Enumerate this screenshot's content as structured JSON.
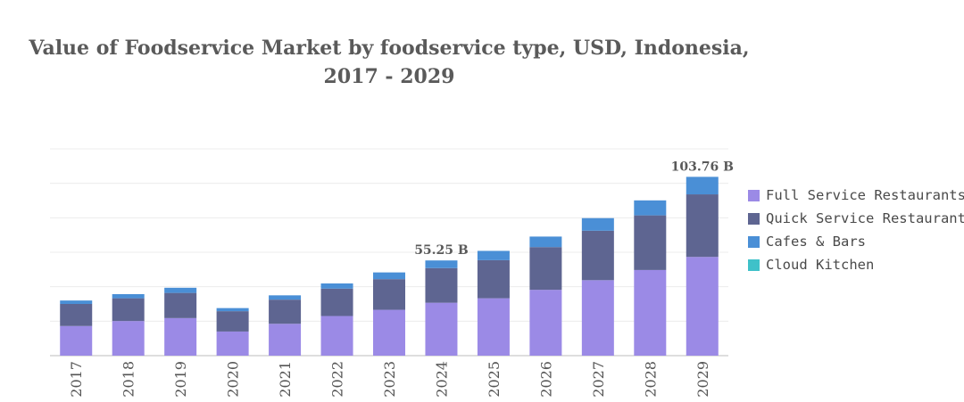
{
  "chart_data": {
    "type": "bar",
    "stacked": true,
    "title_line1": "Value of Foodservice Market by foodservice type, USD, Indonesia,",
    "title_line2": "2017 - 2029",
    "categories": [
      "2017",
      "2018",
      "2019",
      "2020",
      "2021",
      "2022",
      "2023",
      "2024",
      "2025",
      "2026",
      "2027",
      "2028",
      "2029"
    ],
    "series": [
      {
        "name": "Full Service Restaurants",
        "color": "#9b8ae6",
        "values": [
          17.2,
          20.1,
          21.8,
          14.0,
          18.5,
          23.0,
          26.6,
          30.7,
          33.3,
          38.2,
          43.8,
          49.7,
          57.3
        ]
      },
      {
        "name": "Quick Service Restaurants",
        "color": "#5e6591",
        "values": [
          12.8,
          13.2,
          14.6,
          11.8,
          14.0,
          15.9,
          17.8,
          20.1,
          22.1,
          24.8,
          28.7,
          31.7,
          36.3
        ]
      },
      {
        "name": "Cafes & Bars",
        "color": "#4a8fd6",
        "values": [
          2.0,
          2.4,
          3.0,
          1.8,
          2.5,
          3.0,
          3.9,
          4.45,
          5.4,
          6.1,
          7.3,
          8.7,
          10.16
        ]
      },
      {
        "name": "Cloud Kitchen",
        "color": "#3fc1c9",
        "values": [
          0,
          0,
          0,
          0,
          0,
          0,
          0,
          0,
          0,
          0,
          0,
          0,
          0
        ]
      }
    ],
    "annotations": [
      {
        "category": "2024",
        "label": "55.25 B",
        "total": 55.25
      },
      {
        "category": "2029",
        "label": "103.76 B",
        "total": 103.76
      }
    ],
    "ylim": [
      0,
      120
    ],
    "grid": true,
    "legend_position": "right"
  }
}
